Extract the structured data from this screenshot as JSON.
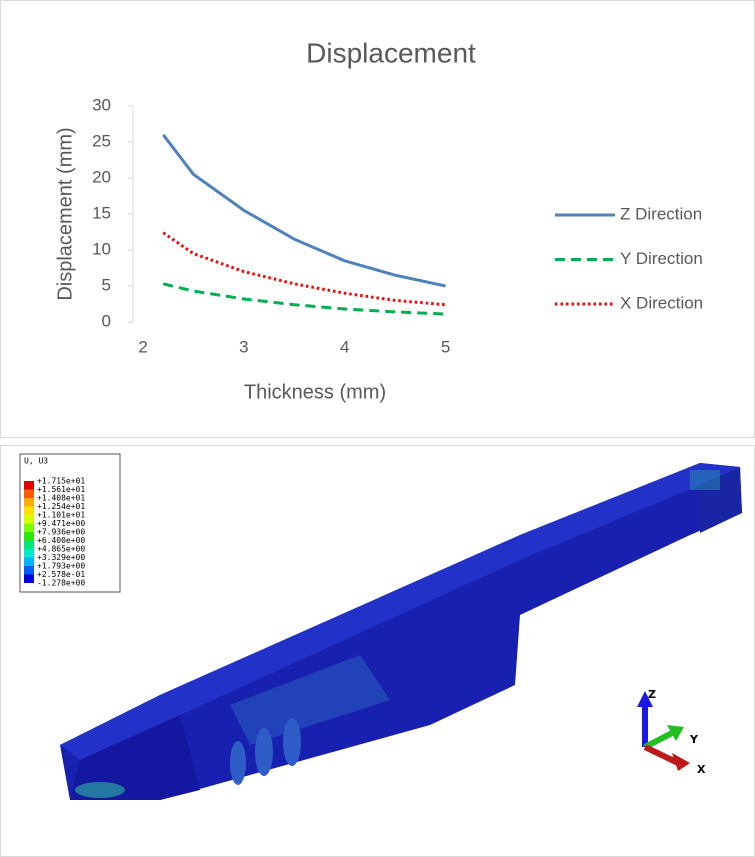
{
  "chart_data": {
    "type": "line",
    "title": "Displacement",
    "x_label": "Thickness (mm)",
    "y_label": "Displacement (mm)",
    "x": [
      2.2,
      2.5,
      3,
      3.5,
      4,
      4.5,
      5
    ],
    "series": [
      {
        "name": "Z Direction",
        "color": "#4f81bd",
        "dash": "solid",
        "values": [
          26,
          20.5,
          15.5,
          11.5,
          8.5,
          6.5,
          5
        ]
      },
      {
        "name": "Y Direction",
        "color": "#00b050",
        "dash": "dashed",
        "values": [
          5.3,
          4.3,
          3.2,
          2.4,
          1.8,
          1.4,
          1.1
        ]
      },
      {
        "name": "X Direction",
        "color": "#ff0000",
        "dash": "dotted",
        "values": [
          12.4,
          9.5,
          7,
          5.3,
          4,
          3,
          2.4
        ]
      }
    ],
    "xlim": [
      1.9,
      5.5
    ],
    "xticks": [
      2,
      3,
      4,
      5
    ],
    "ylim": [
      0,
      30
    ],
    "yticks": [
      0,
      5,
      10,
      15,
      20,
      25,
      30
    ],
    "grid": false,
    "legend": "right"
  },
  "viewport": {
    "legend_title": "U, U3",
    "legend_values": [
      "+1.715e+01",
      "+1.561e+01",
      "+1.408e+01",
      "+1.254e+01",
      "+1.101e+01",
      "+9.471e+00",
      "+7.936e+00",
      "+6.400e+00",
      "+4.865e+00",
      "+3.329e+00",
      "+1.793e+00",
      "+2.578e-01",
      "-1.278e+00"
    ],
    "triad": {
      "z": "Z",
      "y": "Y",
      "x": "X"
    }
  }
}
